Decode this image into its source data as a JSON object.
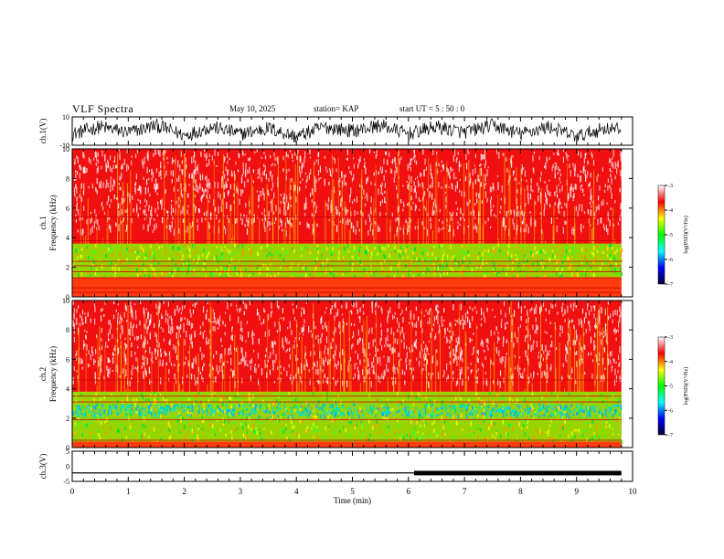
{
  "header": {
    "title": "VLF Spectra",
    "date": "May 10, 2025",
    "station": "station= KAP",
    "start": "start  UT =   5 : 50 : 0"
  },
  "chart_data": [
    {
      "type": "line",
      "panel": "ch1-waveform",
      "ylabel": "ch.1(V)",
      "ylim": [
        -10,
        10
      ],
      "yticks": [
        "10",
        "-10"
      ],
      "xlim": [
        0,
        10
      ],
      "series": [
        {
          "x": [
            0,
            0.5,
            1,
            1.5,
            2,
            2.5,
            3,
            3.5,
            4,
            4.5,
            5,
            5.5,
            6,
            6.5,
            7,
            7.5,
            8,
            8.5,
            9,
            9.5,
            9.8
          ],
          "values": [
            -2,
            3,
            -1,
            4,
            -3,
            3,
            -2,
            2,
            -4,
            3,
            0,
            4,
            -2,
            3,
            -1,
            4,
            -2,
            3,
            -4,
            2,
            1
          ]
        }
      ],
      "color": "#000000"
    },
    {
      "type": "heatmap",
      "panel": "ch1-spectrogram",
      "ylabel": "ch.1 Frequency (kHz)",
      "ylim": [
        0,
        10
      ],
      "yticks": [
        "0",
        "2",
        "4",
        "6",
        "8",
        "10"
      ],
      "xlim": [
        0,
        10
      ],
      "data_extent_min": 9.8,
      "green_band_khz": [
        1.3,
        3.6
      ],
      "noise_lines_khz": [
        0.3,
        0.6,
        1.3,
        1.7,
        2.1,
        2.4,
        3.8,
        5.4
      ],
      "colorbar": {
        "label": "log(PSD)(V²/Hz)",
        "ticks": [
          "-3",
          "-4",
          "-5",
          "-6",
          "-7"
        ],
        "range": [
          -7,
          -3
        ],
        "colors": [
          "#ffffff",
          "#ff0000",
          "#ffff00",
          "#00ff00",
          "#00ffff",
          "#0000ff",
          "#000033"
        ]
      }
    },
    {
      "type": "heatmap",
      "panel": "ch2-spectrogram",
      "ylabel": "ch.2 Frequency (kHz)",
      "ylim": [
        0,
        10
      ],
      "yticks": [
        "0",
        "2",
        "4",
        "6",
        "8",
        "10"
      ],
      "xlim": [
        0,
        10
      ],
      "data_extent_min": 9.8,
      "green_band_khz": [
        0.4,
        3.8
      ],
      "cyan_band_khz": [
        2.2,
        3.0
      ],
      "noise_lines_khz": [
        0.5,
        1.9,
        3.1,
        3.5,
        4.6
      ],
      "colorbar": {
        "label": "log(PSD)(V²/Hz)",
        "ticks": [
          "-3",
          "-4",
          "-5",
          "-6",
          "-7"
        ],
        "range": [
          -7,
          -3
        ],
        "colors": [
          "#ffffff",
          "#ff0000",
          "#ffff00",
          "#00ff00",
          "#00ffff",
          "#0000ff",
          "#000033"
        ]
      }
    },
    {
      "type": "line",
      "panel": "ch3-waveform",
      "ylabel": "ch.3(V)",
      "ylim": [
        -5,
        5
      ],
      "yticks": [
        "5",
        "0",
        "-5"
      ],
      "xlim": [
        0,
        10
      ],
      "xlabel": "Time (min)",
      "xticks": [
        "0",
        "1",
        "2",
        "3",
        "4",
        "5",
        "6",
        "7",
        "8",
        "9",
        "10"
      ],
      "series": [
        {
          "x": [
            0,
            6.1
          ],
          "values": [
            -2.2,
            -2.2
          ]
        },
        {
          "x": [
            6.1,
            9.8
          ],
          "values": [
            -2.2,
            -2.2
          ],
          "spread": [
            -3,
            -1.5
          ]
        }
      ],
      "color": "#000000"
    }
  ]
}
